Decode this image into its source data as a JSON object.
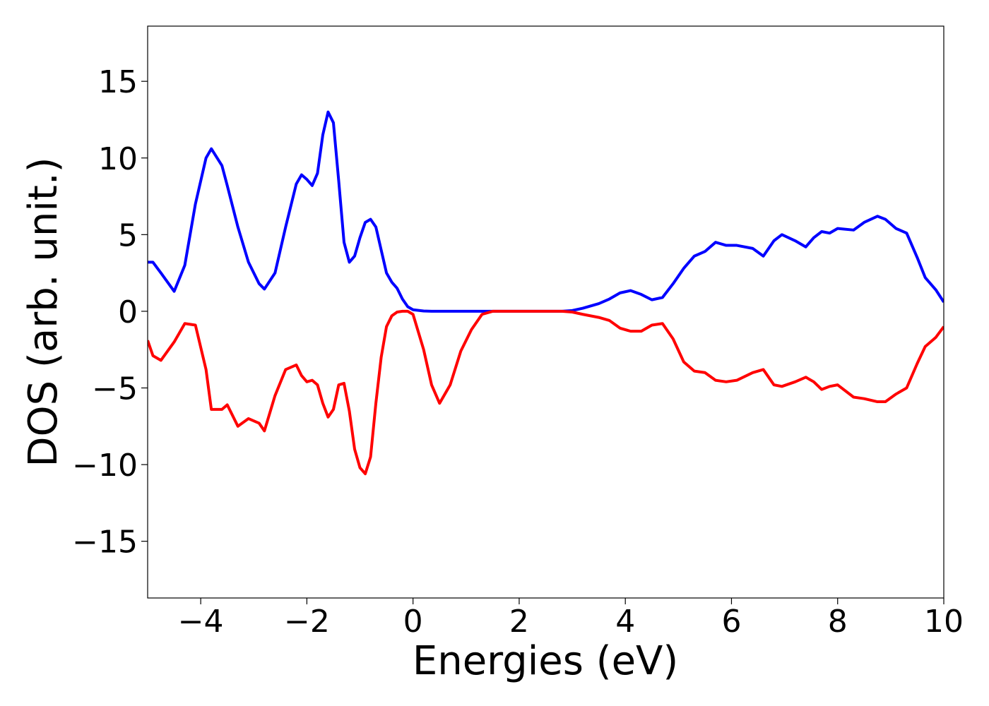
{
  "chart_data": {
    "type": "line",
    "x_label": "Energies (eV)",
    "y_label": "DOS (arb. unit.)",
    "xlim": [
      -5,
      10
    ],
    "ylim": [
      -18.7,
      18.6
    ],
    "xticks": [
      {
        "value": -4,
        "label": "−4"
      },
      {
        "value": -2,
        "label": "−2"
      },
      0,
      2,
      4,
      6,
      8,
      10
    ],
    "yticks": [
      {
        "value": -15,
        "label": "−15"
      },
      {
        "value": -10,
        "label": "−10"
      },
      {
        "value": -5,
        "label": "−5"
      },
      0,
      5,
      10,
      15
    ],
    "x": [
      -5,
      -4.9,
      -4.75,
      -4.5,
      -4.3,
      -4.1,
      -3.9,
      -3.8,
      -3.6,
      -3.5,
      -3.3,
      -3.1,
      -2.9,
      -2.8,
      -2.6,
      -2.4,
      -2.2,
      -2.1,
      -2,
      -1.9,
      -1.8,
      -1.7,
      -1.6,
      -1.5,
      -1.4,
      -1.3,
      -1.2,
      -1.1,
      -1,
      -0.9,
      -0.8,
      -0.7,
      -0.6,
      -0.5,
      -0.4,
      -0.3,
      -0.2,
      -0.1,
      0,
      0.2,
      0.35,
      0.5,
      0.7,
      0.9,
      1.1,
      1.3,
      1.5,
      2,
      2.5,
      2.8,
      3,
      3.2,
      3.5,
      3.7,
      3.9,
      4.1,
      4.3,
      4.5,
      4.7,
      4.9,
      5.1,
      5.3,
      5.5,
      5.7,
      5.9,
      6.1,
      6.4,
      6.6,
      6.8,
      6.95,
      7.2,
      7.4,
      7.55,
      7.7,
      7.85,
      8,
      8.3,
      8.5,
      8.75,
      8.9,
      9.1,
      9.3,
      9.5,
      9.65,
      9.85,
      10
    ],
    "series": [
      {
        "color": "#0000ff",
        "values": [
          3.2,
          3.2,
          2.5,
          1.3,
          3.0,
          7,
          10,
          10.6,
          9.5,
          8.2,
          5.5,
          3.2,
          1.8,
          1.45,
          2.5,
          5.5,
          8.3,
          8.9,
          8.6,
          8.2,
          9.0,
          11.5,
          13.0,
          12.3,
          8.5,
          4.5,
          3.2,
          3.6,
          4.8,
          5.8,
          6.0,
          5.5,
          4,
          2.5,
          1.9,
          1.5,
          0.8,
          0.3,
          0.1,
          0.02,
          0,
          0,
          0,
          0,
          0,
          0,
          0,
          0,
          0,
          0,
          0.05,
          0.2,
          0.5,
          0.8,
          1.2,
          1.35,
          1.1,
          0.75,
          0.9,
          1.8,
          2.8,
          3.6,
          3.9,
          4.5,
          4.3,
          4.3,
          4.1,
          3.6,
          4.6,
          5.0,
          4.6,
          4.2,
          4.8,
          5.2,
          5.1,
          5.4,
          5.3,
          5.8,
          6.2,
          6.0,
          5.4,
          5.1,
          3.5,
          2.2,
          1.4,
          0.6
        ]
      },
      {
        "color": "#ff0000",
        "values": [
          -1.9,
          -2.9,
          -3.2,
          -2.0,
          -0.8,
          -0.9,
          -3.8,
          -6.4,
          -6.4,
          -6.1,
          -7.5,
          -7.0,
          -7.3,
          -7.8,
          -5.5,
          -3.8,
          -3.5,
          -4.2,
          -4.6,
          -4.5,
          -4.8,
          -6.0,
          -6.9,
          -6.4,
          -4.8,
          -4.7,
          -6.5,
          -9.0,
          -10.2,
          -10.6,
          -9.5,
          -6,
          -3,
          -1,
          -0.3,
          -0.05,
          0,
          0,
          -0.2,
          -2.5,
          -4.8,
          -6.0,
          -4.8,
          -2.6,
          -1.2,
          -0.2,
          0,
          0,
          0,
          0,
          -0.05,
          -0.2,
          -0.4,
          -0.6,
          -1.1,
          -1.3,
          -1.3,
          -0.9,
          -0.8,
          -1.8,
          -3.3,
          -3.9,
          -4.0,
          -4.5,
          -4.6,
          -4.5,
          -4.0,
          -3.8,
          -4.8,
          -4.9,
          -4.6,
          -4.3,
          -4.6,
          -5.1,
          -4.9,
          -4.8,
          -5.6,
          -5.7,
          -5.9,
          -5.9,
          -5.4,
          -5.0,
          -3.4,
          -2.3,
          -1.7,
          -1.0
        ]
      }
    ]
  }
}
